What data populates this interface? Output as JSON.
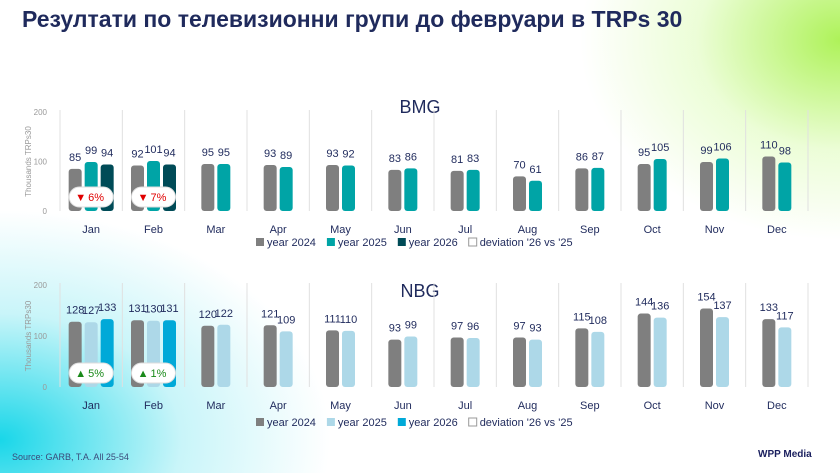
{
  "title": "Резултати по телевизионни групи до февруари в TRPs 30",
  "source": "Source: GARB, T.A. All 25-54",
  "logo": "WPP Media",
  "chart_data": [
    {
      "type": "bar",
      "title": "BMG",
      "ylabel": "Thousands TRPs30",
      "ylim": [
        0,
        200
      ],
      "yticks": [
        "0",
        "100",
        "200"
      ],
      "categories": [
        "Jan",
        "Feb",
        "Mar",
        "Apr",
        "May",
        "Jun",
        "Jul",
        "Aug",
        "Sep",
        "Oct",
        "Nov",
        "Dec"
      ],
      "series": [
        {
          "name": "year 2024",
          "color": "#7f7f7f",
          "values": [
            85,
            92,
            95,
            93,
            93,
            83,
            81,
            70,
            86,
            95,
            99,
            110
          ]
        },
        {
          "name": "year 2025",
          "color": "#00a4a6",
          "values": [
            99,
            101,
            95,
            89,
            92,
            86,
            83,
            61,
            87,
            105,
            106,
            98
          ]
        },
        {
          "name": "year 2026",
          "color": "#004b57",
          "values": [
            94,
            94,
            null,
            null,
            null,
            null,
            null,
            null,
            null,
            null,
            null,
            null
          ]
        }
      ],
      "deviation_legend": "deviation '26 vs '25",
      "deviations": [
        {
          "month": "Jan",
          "label": "6%",
          "direction": "down"
        },
        {
          "month": "Feb",
          "label": "7%",
          "direction": "down"
        }
      ],
      "legend_position": "bottom"
    },
    {
      "type": "bar",
      "title": "NBG",
      "ylabel": "Thousands TRPs30",
      "ylim": [
        0,
        200
      ],
      "yticks": [
        "0",
        "100",
        "200"
      ],
      "categories": [
        "Jan",
        "Feb",
        "Mar",
        "Apr",
        "May",
        "Jun",
        "Jul",
        "Aug",
        "Sep",
        "Oct",
        "Nov",
        "Dec"
      ],
      "series": [
        {
          "name": "year 2024",
          "color": "#7f7f7f",
          "values": [
            128,
            131,
            120,
            121,
            111,
            93,
            97,
            97,
            115,
            144,
            154,
            133
          ]
        },
        {
          "name": "year 2025",
          "color": "#add8e8",
          "values": [
            127,
            130,
            122,
            109,
            110,
            99,
            96,
            93,
            108,
            136,
            137,
            117
          ]
        },
        {
          "name": "year 2026",
          "color": "#00a9d8",
          "values": [
            133,
            131,
            null,
            null,
            null,
            null,
            null,
            null,
            null,
            null,
            null,
            null
          ]
        }
      ],
      "deviation_legend": "deviation '26 vs '25",
      "deviations": [
        {
          "month": "Jan",
          "label": "5%",
          "direction": "up"
        },
        {
          "month": "Feb",
          "label": "1%",
          "direction": "up"
        }
      ],
      "legend_position": "bottom"
    }
  ]
}
